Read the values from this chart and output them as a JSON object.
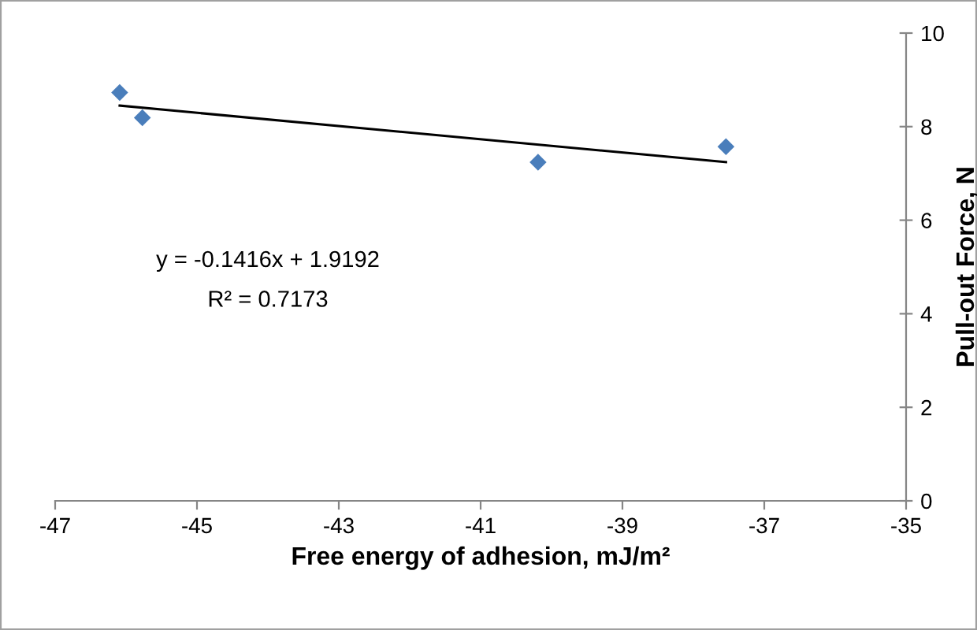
{
  "chart_data": {
    "type": "scatter",
    "xlabel": "Free energy of adhesion, mJ/m²",
    "ylabel": "Pull-out Force, N",
    "grid": false,
    "legend": false,
    "series": [
      {
        "color": "#4a7ebb",
        "marker": "diamond",
        "x": [
          -46.09,
          -45.77,
          -40.19,
          -37.54
        ],
        "values": [
          8.73,
          8.19,
          7.24,
          7.57
        ]
      },
      {
        "type": "line",
        "color": "#000000",
        "x": [
          -46.09,
          -37.54
        ],
        "values": [
          8.45,
          7.24
        ]
      }
    ],
    "xlim": [
      -47,
      -35
    ],
    "xticks": [
      {
        "value": -47,
        "label": "-47"
      },
      {
        "value": -45,
        "label": "-45"
      },
      {
        "value": -43,
        "label": "-43"
      },
      {
        "value": -41,
        "label": "-41"
      },
      {
        "value": -39,
        "label": "-39"
      },
      {
        "value": -37,
        "label": "-37"
      },
      {
        "value": -35,
        "label": "-35"
      }
    ],
    "ylim": [
      0,
      10
    ],
    "yticks": [
      0,
      2,
      4,
      6,
      8,
      10
    ],
    "annotations": [
      "y = -0.1416x + 1.9192",
      "R² = 0.7173"
    ]
  }
}
